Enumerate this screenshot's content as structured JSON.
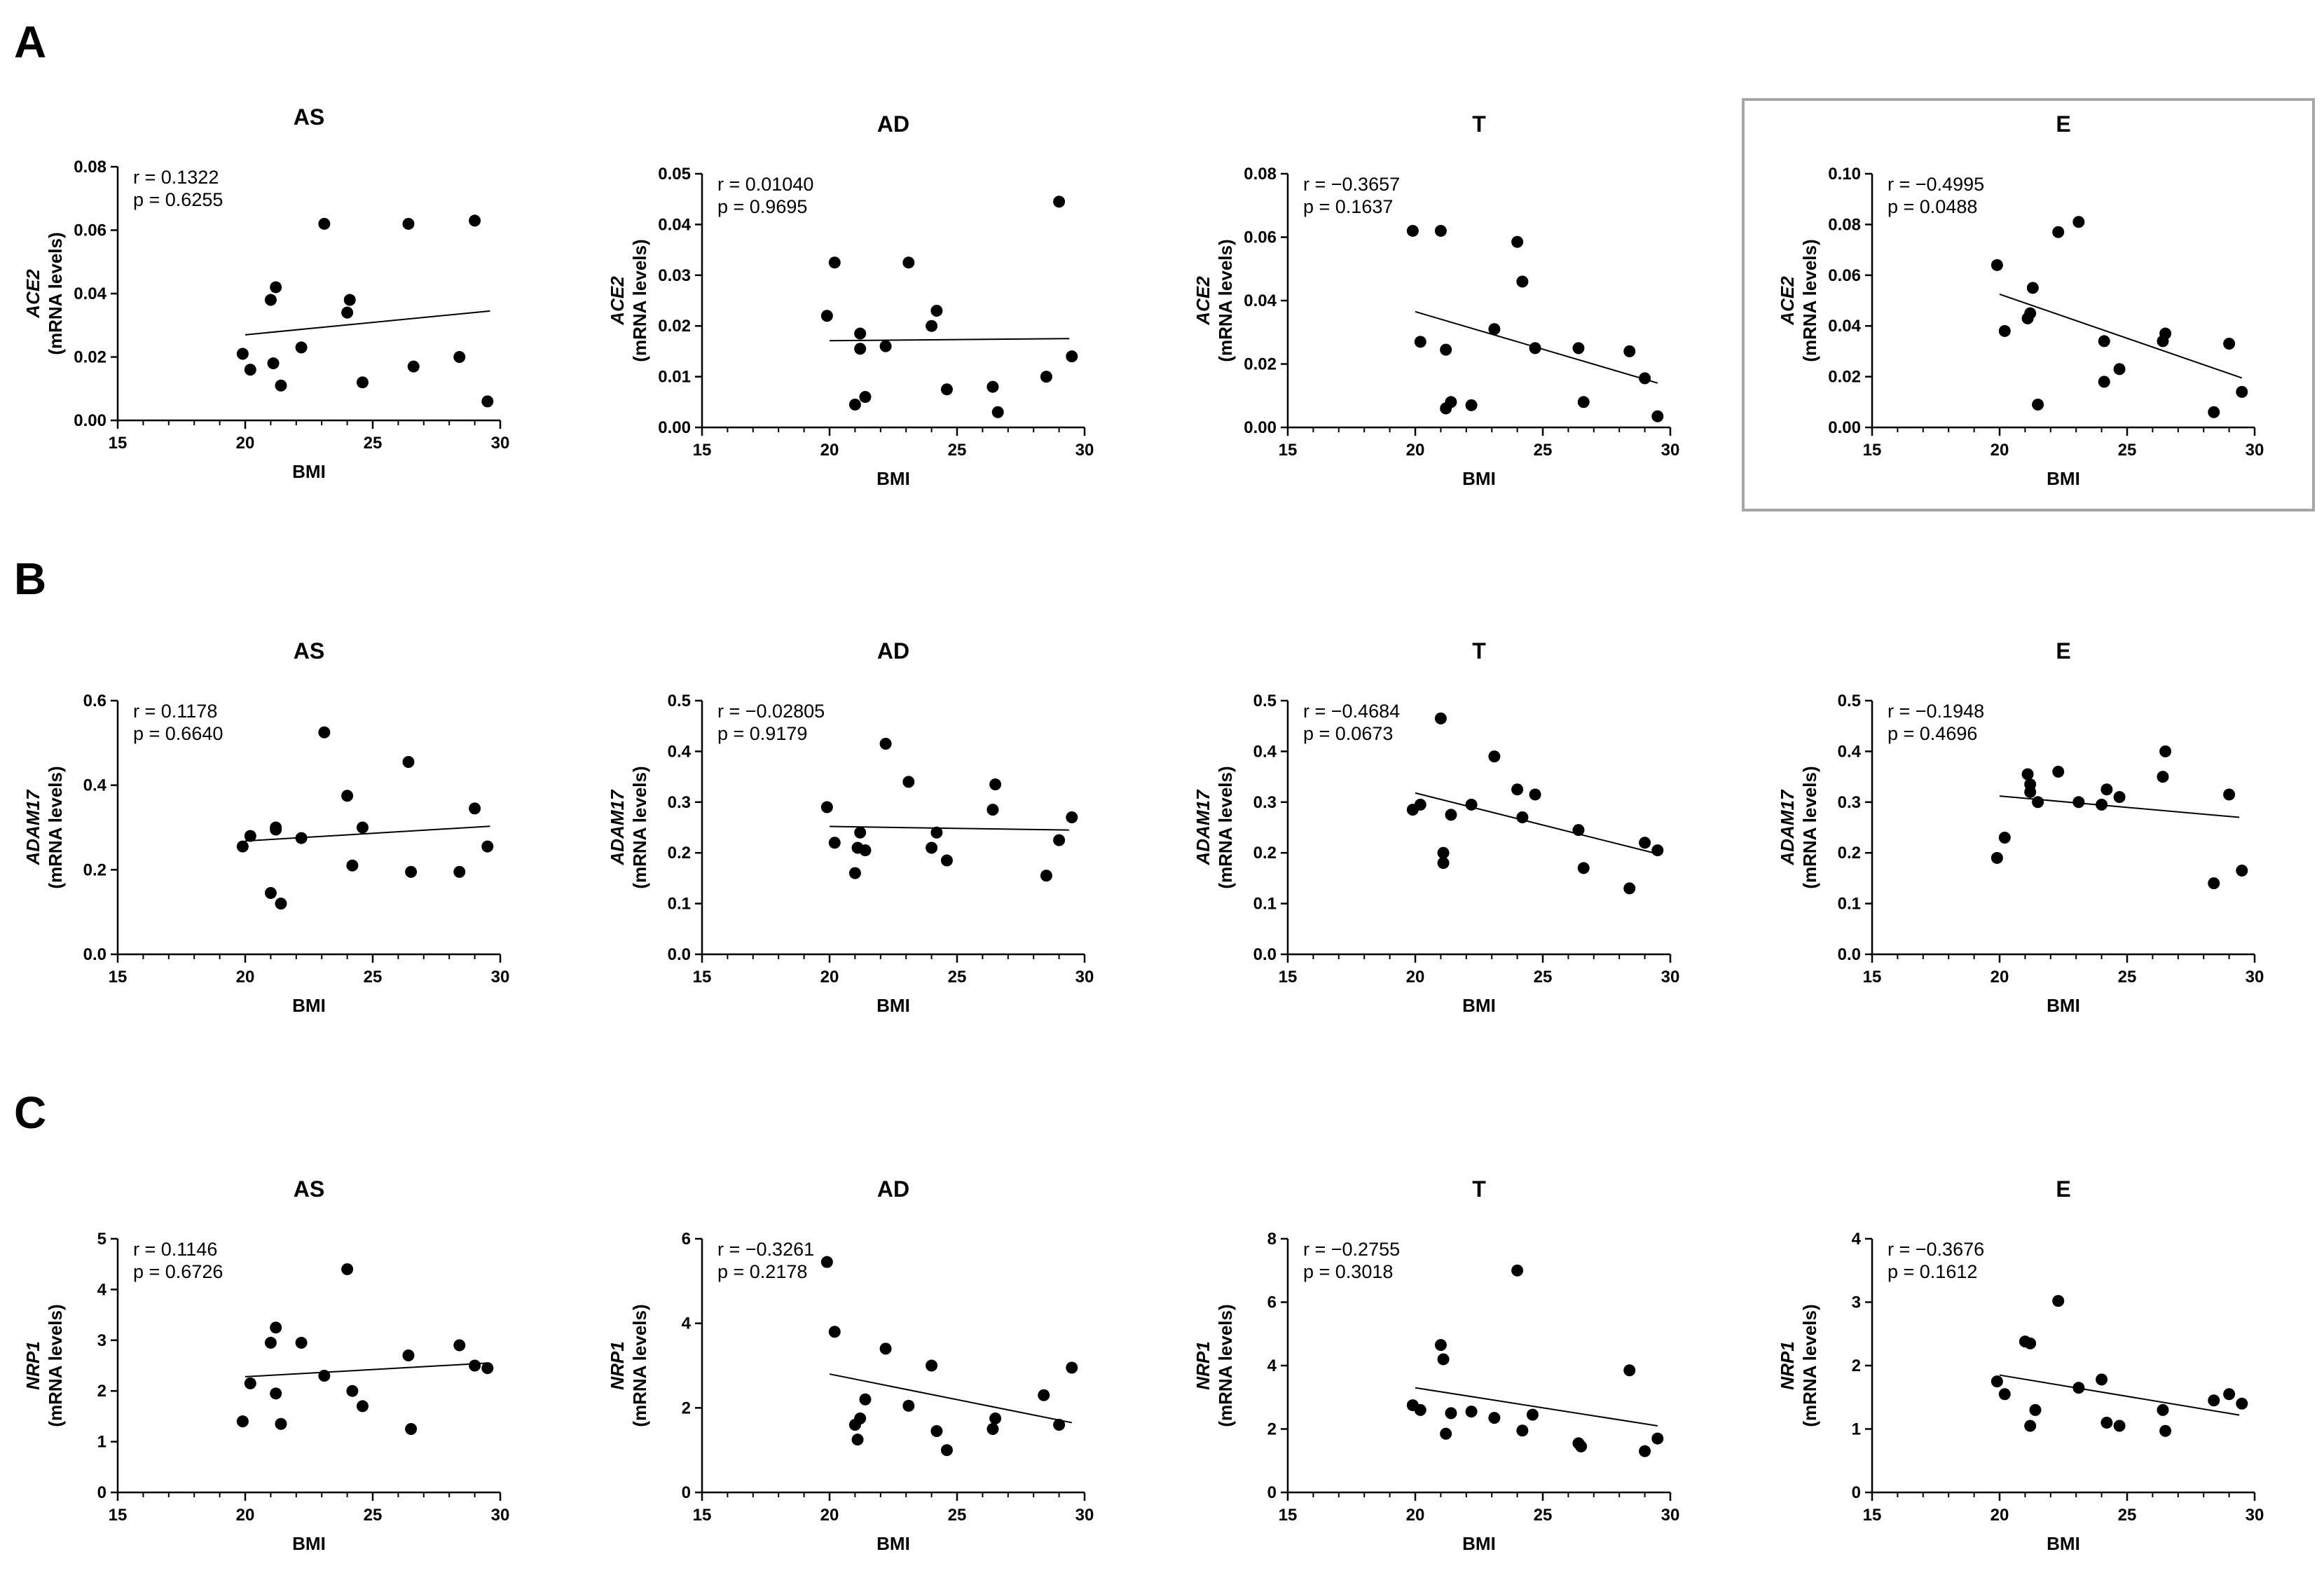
{
  "figure": {
    "panel_labels": [
      "A",
      "B",
      "C"
    ],
    "highlight": {
      "row": 0,
      "col": 3
    },
    "colors": {
      "ink": "#000000",
      "highlight_border": "#a6a6a6",
      "background": "#ffffff"
    }
  },
  "chart_data": [
    {
      "type": "scatter",
      "row": 0,
      "col": 0,
      "title": "AS",
      "xlabel": "BMI",
      "ylabel_gene": "ACE2",
      "ylabel_unit": "(mRNA levels)",
      "xlim": [
        15,
        30
      ],
      "ylim": [
        0,
        0.08
      ],
      "yticks": [
        0.0,
        0.02,
        0.04,
        0.06,
        0.08
      ],
      "ytick_labels": [
        "0.00",
        "0.02",
        "0.04",
        "0.06",
        "0.08"
      ],
      "xticks": [
        15,
        20,
        25,
        30
      ],
      "stat_r": "r = 0.1322",
      "stat_p": "p = 0.6255",
      "fit": {
        "x": [
          20,
          29.6
        ],
        "y": [
          0.027,
          0.0345
        ]
      },
      "points": {
        "x": [
          19.9,
          20.2,
          21.0,
          21.2,
          21.1,
          21.4,
          22.2,
          23.1,
          24.0,
          24.1,
          24.6,
          26.4,
          26.6,
          28.4,
          29.0,
          29.5
        ],
        "y": [
          0.021,
          0.016,
          0.038,
          0.042,
          0.018,
          0.011,
          0.023,
          0.062,
          0.034,
          0.038,
          0.012,
          0.062,
          0.017,
          0.02,
          0.063,
          0.006
        ]
      }
    },
    {
      "type": "scatter",
      "row": 0,
      "col": 1,
      "title": "AD",
      "xlabel": "BMI",
      "ylabel_gene": "ACE2",
      "ylabel_unit": "(mRNA levels)",
      "xlim": [
        15,
        30
      ],
      "ylim": [
        0,
        0.05
      ],
      "yticks": [
        0.0,
        0.01,
        0.02,
        0.03,
        0.04,
        0.05
      ],
      "ytick_labels": [
        "0.00",
        "0.01",
        "0.02",
        "0.03",
        "0.04",
        "0.05"
      ],
      "xticks": [
        15,
        20,
        25,
        30
      ],
      "stat_r": "r = 0.01040",
      "stat_p": "p = 0.9695",
      "fit": {
        "x": [
          20,
          29.4
        ],
        "y": [
          0.0171,
          0.0175
        ]
      },
      "points": {
        "x": [
          19.9,
          20.2,
          21.0,
          21.2,
          21.2,
          21.4,
          22.2,
          23.1,
          24.0,
          24.2,
          24.6,
          26.4,
          26.6,
          28.5,
          29.0,
          29.5
        ],
        "y": [
          0.022,
          0.0325,
          0.0045,
          0.0185,
          0.0155,
          0.006,
          0.016,
          0.0325,
          0.02,
          0.023,
          0.0075,
          0.008,
          0.003,
          0.01,
          0.0445,
          0.014
        ]
      }
    },
    {
      "type": "scatter",
      "row": 0,
      "col": 2,
      "title": "T",
      "xlabel": "BMI",
      "ylabel_gene": "ACE2",
      "ylabel_unit": "(mRNA levels)",
      "xlim": [
        15,
        30
      ],
      "ylim": [
        0,
        0.08
      ],
      "yticks": [
        0.0,
        0.02,
        0.04,
        0.06,
        0.08
      ],
      "ytick_labels": [
        "0.00",
        "0.02",
        "0.04",
        "0.06",
        "0.08"
      ],
      "xticks": [
        15,
        20,
        25,
        30
      ],
      "stat_r": "r = −0.3657",
      "stat_p": "p = 0.1637",
      "fit": {
        "x": [
          20,
          29.5
        ],
        "y": [
          0.0365,
          0.014
        ]
      },
      "points": {
        "x": [
          19.9,
          20.2,
          21.0,
          21.2,
          21.2,
          21.4,
          22.2,
          23.1,
          24.0,
          24.2,
          24.7,
          26.4,
          26.6,
          28.4,
          29.0,
          29.5
        ],
        "y": [
          0.062,
          0.027,
          0.062,
          0.0245,
          0.006,
          0.008,
          0.007,
          0.031,
          0.0585,
          0.046,
          0.025,
          0.025,
          0.008,
          0.024,
          0.0155,
          0.0035
        ]
      }
    },
    {
      "type": "scatter",
      "row": 0,
      "col": 3,
      "title": "E",
      "xlabel": "BMI",
      "ylabel_gene": "ACE2",
      "ylabel_unit": "(mRNA levels)",
      "xlim": [
        15,
        30
      ],
      "ylim": [
        0,
        0.1
      ],
      "yticks": [
        0.0,
        0.02,
        0.04,
        0.06,
        0.08,
        0.1
      ],
      "ytick_labels": [
        "0.00",
        "0.02",
        "0.04",
        "0.06",
        "0.08",
        "0.10"
      ],
      "xticks": [
        15,
        20,
        25,
        30
      ],
      "stat_r": "r = −0.4995",
      "stat_p": "p = 0.0488",
      "fit": {
        "x": [
          20,
          29.5
        ],
        "y": [
          0.0525,
          0.0195
        ]
      },
      "points": {
        "x": [
          19.9,
          20.2,
          21.1,
          21.2,
          21.3,
          21.5,
          22.3,
          23.1,
          24.1,
          24.1,
          24.7,
          26.4,
          26.5,
          28.4,
          29.0,
          29.5
        ],
        "y": [
          0.064,
          0.038,
          0.043,
          0.045,
          0.055,
          0.009,
          0.077,
          0.081,
          0.018,
          0.034,
          0.023,
          0.034,
          0.037,
          0.006,
          0.033,
          0.014
        ]
      }
    },
    {
      "type": "scatter",
      "row": 1,
      "col": 0,
      "title": "AS",
      "xlabel": "BMI",
      "ylabel_gene": "ADAM17",
      "ylabel_unit": "(mRNA levels)",
      "xlim": [
        15,
        30
      ],
      "ylim": [
        0,
        0.6
      ],
      "yticks": [
        0.0,
        0.2,
        0.4,
        0.6
      ],
      "ytick_labels": [
        "0.0",
        "0.2",
        "0.4",
        "0.6"
      ],
      "xticks": [
        15,
        20,
        25,
        30
      ],
      "stat_r": "r = 0.1178",
      "stat_p": "p = 0.6640",
      "fit": {
        "x": [
          20,
          29.6
        ],
        "y": [
          0.268,
          0.303
        ]
      },
      "points": {
        "x": [
          19.9,
          20.2,
          21.0,
          21.2,
          21.2,
          21.4,
          22.2,
          23.1,
          24.0,
          24.2,
          24.6,
          26.4,
          26.5,
          28.4,
          29.0,
          29.5
        ],
        "y": [
          0.255,
          0.28,
          0.145,
          0.295,
          0.3,
          0.12,
          0.275,
          0.525,
          0.375,
          0.21,
          0.3,
          0.455,
          0.195,
          0.195,
          0.345,
          0.255
        ]
      }
    },
    {
      "type": "scatter",
      "row": 1,
      "col": 1,
      "title": "AD",
      "xlabel": "BMI",
      "ylabel_gene": "ADAM17",
      "ylabel_unit": "(mRNA levels)",
      "xlim": [
        15,
        30
      ],
      "ylim": [
        0,
        0.5
      ],
      "yticks": [
        0.0,
        0.1,
        0.2,
        0.3,
        0.4,
        0.5
      ],
      "ytick_labels": [
        "0.0",
        "0.1",
        "0.2",
        "0.3",
        "0.4",
        "0.5"
      ],
      "xticks": [
        15,
        20,
        25,
        30
      ],
      "stat_r": "r = −0.02805",
      "stat_p": "p = 0.9179",
      "fit": {
        "x": [
          20,
          29.4
        ],
        "y": [
          0.252,
          0.245
        ]
      },
      "points": {
        "x": [
          19.9,
          20.2,
          21.0,
          21.2,
          21.1,
          21.4,
          22.2,
          23.1,
          24.0,
          24.2,
          24.6,
          26.4,
          26.5,
          28.5,
          29.0,
          29.5
        ],
        "y": [
          0.29,
          0.22,
          0.16,
          0.24,
          0.21,
          0.205,
          0.415,
          0.34,
          0.21,
          0.24,
          0.185,
          0.285,
          0.335,
          0.155,
          0.225,
          0.27
        ]
      }
    },
    {
      "type": "scatter",
      "row": 1,
      "col": 2,
      "title": "T",
      "xlabel": "BMI",
      "ylabel_gene": "ADAM17",
      "ylabel_unit": "(mRNA levels)",
      "xlim": [
        15,
        30
      ],
      "ylim": [
        0,
        0.5
      ],
      "yticks": [
        0.0,
        0.1,
        0.2,
        0.3,
        0.4,
        0.5
      ],
      "ytick_labels": [
        "0.0",
        "0.1",
        "0.2",
        "0.3",
        "0.4",
        "0.5"
      ],
      "xticks": [
        15,
        20,
        25,
        30
      ],
      "stat_r": "r = −0.4684",
      "stat_p": "p = 0.0673",
      "fit": {
        "x": [
          20,
          29.5
        ],
        "y": [
          0.318,
          0.198
        ]
      },
      "points": {
        "x": [
          19.9,
          20.2,
          21.0,
          21.1,
          21.1,
          21.4,
          22.2,
          23.1,
          24.0,
          24.2,
          24.7,
          26.4,
          26.6,
          28.4,
          29.0,
          29.5
        ],
        "y": [
          0.285,
          0.295,
          0.465,
          0.2,
          0.18,
          0.275,
          0.295,
          0.39,
          0.325,
          0.27,
          0.315,
          0.245,
          0.17,
          0.13,
          0.22,
          0.205
        ]
      }
    },
    {
      "type": "scatter",
      "row": 1,
      "col": 3,
      "title": "E",
      "xlabel": "BMI",
      "ylabel_gene": "ADAM17",
      "ylabel_unit": "(mRNA levels)",
      "xlim": [
        15,
        30
      ],
      "ylim": [
        0,
        0.5
      ],
      "yticks": [
        0.0,
        0.1,
        0.2,
        0.3,
        0.4,
        0.5
      ],
      "ytick_labels": [
        "0.0",
        "0.1",
        "0.2",
        "0.3",
        "0.4",
        "0.5"
      ],
      "xticks": [
        15,
        20,
        25,
        30
      ],
      "stat_r": "r = −0.1948",
      "stat_p": "p = 0.4696",
      "fit": {
        "x": [
          20,
          29.4
        ],
        "y": [
          0.312,
          0.27
        ]
      },
      "points": {
        "x": [
          19.9,
          20.2,
          21.1,
          21.2,
          21.2,
          21.5,
          22.3,
          23.1,
          24.0,
          24.2,
          24.7,
          26.4,
          26.5,
          28.4,
          29.0,
          29.5
        ],
        "y": [
          0.19,
          0.23,
          0.355,
          0.335,
          0.32,
          0.3,
          0.36,
          0.3,
          0.295,
          0.325,
          0.31,
          0.35,
          0.4,
          0.14,
          0.315,
          0.165
        ]
      }
    },
    {
      "type": "scatter",
      "row": 2,
      "col": 0,
      "title": "AS",
      "xlabel": "BMI",
      "ylabel_gene": "NRP1",
      "ylabel_unit": "(mRNA levels)",
      "xlim": [
        15,
        30
      ],
      "ylim": [
        0,
        5
      ],
      "yticks": [
        0,
        1,
        2,
        3,
        4,
        5
      ],
      "ytick_labels": [
        "0",
        "1",
        "2",
        "3",
        "4",
        "5"
      ],
      "xticks": [
        15,
        20,
        25,
        30
      ],
      "stat_r": "r = 0.1146",
      "stat_p": "p = 0.6726",
      "fit": {
        "x": [
          20,
          29.5
        ],
        "y": [
          2.28,
          2.55
        ]
      },
      "points": {
        "x": [
          19.9,
          20.2,
          21.0,
          21.2,
          21.2,
          21.4,
          22.2,
          23.1,
          24.0,
          24.2,
          24.6,
          26.4,
          26.5,
          28.4,
          29.0,
          29.5
        ],
        "y": [
          1.4,
          2.15,
          2.95,
          3.25,
          1.95,
          1.35,
          2.95,
          2.3,
          4.4,
          2.0,
          1.7,
          2.7,
          1.25,
          2.9,
          2.5,
          2.45
        ]
      }
    },
    {
      "type": "scatter",
      "row": 2,
      "col": 1,
      "title": "AD",
      "xlabel": "BMI",
      "ylabel_gene": "NRP1",
      "ylabel_unit": "(mRNA levels)",
      "xlim": [
        15,
        30
      ],
      "ylim": [
        0,
        6
      ],
      "yticks": [
        0,
        2,
        4,
        6
      ],
      "ytick_labels": [
        "0",
        "2",
        "4",
        "6"
      ],
      "xticks": [
        15,
        20,
        25,
        30
      ],
      "stat_r": "r = −0.3261",
      "stat_p": "p = 0.2178",
      "fit": {
        "x": [
          20,
          29.5
        ],
        "y": [
          2.8,
          1.65
        ]
      },
      "points": {
        "x": [
          19.9,
          20.2,
          21.0,
          21.1,
          21.2,
          21.4,
          22.2,
          23.1,
          24.0,
          24.2,
          24.6,
          26.4,
          26.5,
          28.4,
          29.0,
          29.5
        ],
        "y": [
          5.45,
          3.8,
          1.6,
          1.25,
          1.75,
          2.2,
          3.4,
          2.05,
          3.0,
          1.45,
          1.0,
          1.5,
          1.75,
          2.3,
          1.6,
          2.95
        ]
      }
    },
    {
      "type": "scatter",
      "row": 2,
      "col": 2,
      "title": "T",
      "xlabel": "BMI",
      "ylabel_gene": "NRP1",
      "ylabel_unit": "(mRNA levels)",
      "xlim": [
        15,
        30
      ],
      "ylim": [
        0,
        8
      ],
      "yticks": [
        0,
        2,
        4,
        6,
        8
      ],
      "ytick_labels": [
        "0",
        "2",
        "4",
        "6",
        "8"
      ],
      "xticks": [
        15,
        20,
        25,
        30
      ],
      "stat_r": "r = −0.2755",
      "stat_p": "p = 0.3018",
      "fit": {
        "x": [
          20,
          29.5
        ],
        "y": [
          3.3,
          2.1
        ]
      },
      "points": {
        "x": [
          19.9,
          20.2,
          21.0,
          21.1,
          21.2,
          21.4,
          22.2,
          23.1,
          24.0,
          24.2,
          24.6,
          26.4,
          26.5,
          28.4,
          29.0,
          29.5
        ],
        "y": [
          2.75,
          2.6,
          4.65,
          4.2,
          1.85,
          2.5,
          2.55,
          2.35,
          7.0,
          1.95,
          2.45,
          1.55,
          1.45,
          3.85,
          1.3,
          1.7
        ]
      }
    },
    {
      "type": "scatter",
      "row": 2,
      "col": 3,
      "title": "E",
      "xlabel": "BMI",
      "ylabel_gene": "NRP1",
      "ylabel_unit": "(mRNA levels)",
      "xlim": [
        15,
        30
      ],
      "ylim": [
        0,
        4
      ],
      "yticks": [
        0,
        1,
        2,
        3,
        4
      ],
      "ytick_labels": [
        "0",
        "1",
        "2",
        "3",
        "4"
      ],
      "xticks": [
        15,
        20,
        25,
        30
      ],
      "stat_r": "r = −0.3676",
      "stat_p": "p = 0.1612",
      "fit": {
        "x": [
          20,
          29.4
        ],
        "y": [
          1.85,
          1.22
        ]
      },
      "points": {
        "x": [
          19.9,
          20.2,
          21.0,
          21.2,
          21.2,
          21.4,
          22.3,
          23.1,
          24.0,
          24.2,
          24.7,
          26.4,
          26.5,
          28.4,
          29.0,
          29.5
        ],
        "y": [
          1.75,
          1.55,
          2.38,
          1.05,
          2.35,
          1.3,
          3.02,
          1.65,
          1.78,
          1.1,
          1.05,
          1.3,
          0.97,
          1.45,
          1.55,
          1.4
        ]
      }
    }
  ]
}
